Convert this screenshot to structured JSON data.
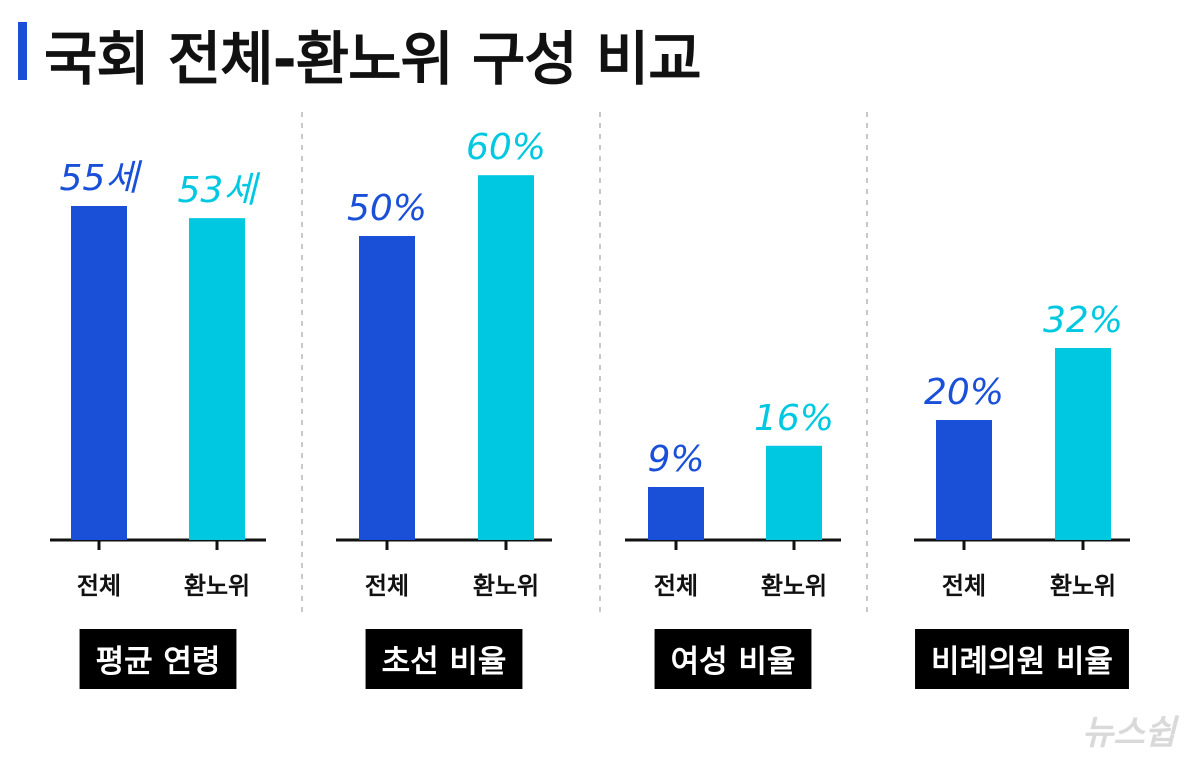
{
  "header": {
    "title": "국회 전체-환노위 구성 비교"
  },
  "colors": {
    "accent": "#1a4fd8",
    "series_all": "#1a4fd8",
    "series_committee": "#00c8e0",
    "label_bg": "#000000"
  },
  "chart_data": [
    {
      "type": "bar",
      "title": "평균 연령",
      "categories": [
        "전체",
        "환노위"
      ],
      "values": [
        55,
        53
      ],
      "data_labels": [
        "55세",
        "53세"
      ]
    },
    {
      "type": "bar",
      "title": "초선 비율",
      "categories": [
        "전체",
        "환노위"
      ],
      "values": [
        50,
        60
      ],
      "data_labels": [
        "50%",
        "60%"
      ]
    },
    {
      "type": "bar",
      "title": "여성 비율",
      "categories": [
        "전체",
        "환노위"
      ],
      "values": [
        9,
        16
      ],
      "data_labels": [
        "9%",
        "16%"
      ]
    },
    {
      "type": "bar",
      "title": "비례의원 비율",
      "categories": [
        "전체",
        "환노위"
      ],
      "values": [
        20,
        32
      ],
      "data_labels": [
        "20%",
        "32%"
      ]
    }
  ],
  "watermark": {
    "text": "뉴스쉽"
  }
}
